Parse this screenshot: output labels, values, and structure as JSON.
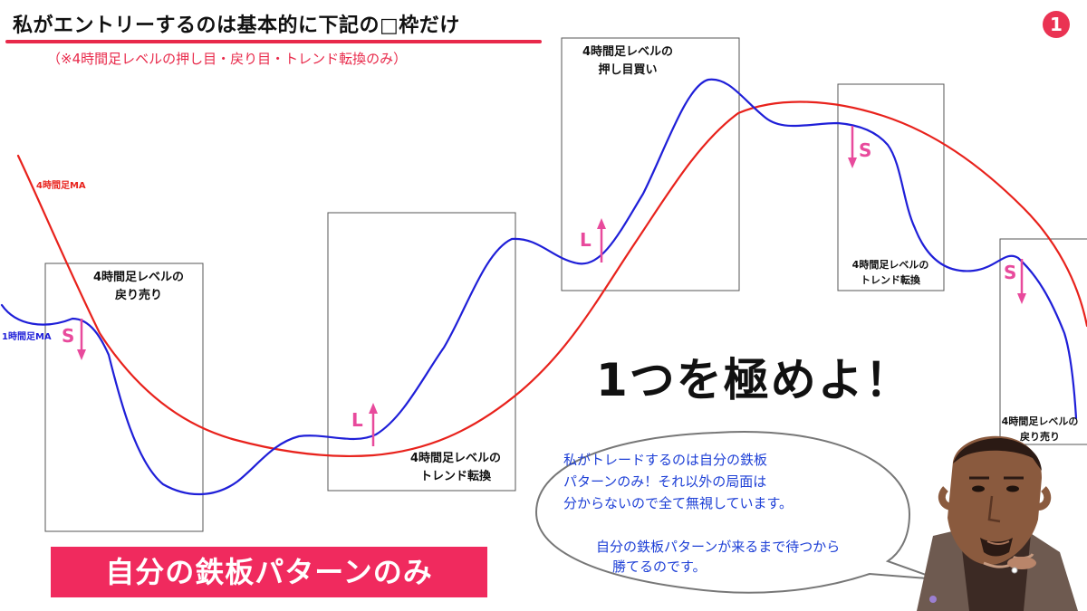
{
  "header": {
    "title": "私がエントリーするのは基本的に下記の□枠だけ",
    "subtitle": "（※4時間足レベルの押し目・戻り目・トレンド転換のみ）",
    "page_number": "1"
  },
  "zones": [
    {
      "line1": "4時間足レベルの",
      "line2": "戻り売り"
    },
    {
      "line1": "4時間足レベルの",
      "line2": "トレンド転換"
    },
    {
      "line1": "4時間足レベルの",
      "line2": "押し目買い"
    },
    {
      "line1": "4時間足レベルの",
      "line2": "トレンド転換"
    },
    {
      "line1": "4時間足レベルの",
      "line2": "戻り売り"
    }
  ],
  "ma_labels": {
    "h4": "4時間足MA",
    "h1": "1時間足MA"
  },
  "signals": {
    "sell": "S",
    "buy": "L"
  },
  "catchphrase": "1つを極めよ！",
  "banner": "自分の鉄板パターンのみ",
  "speech_bubble": {
    "line1": "私がトレードするのは自分の鉄板",
    "line2": "パターンのみ！それ以外の局面は",
    "line3": "分からないので全て無視しています。",
    "line4": "自分の鉄板パターンが来るまで待つから",
    "line5": "勝てるのです。"
  },
  "colors": {
    "ma_4h": "#e8221c",
    "ma_1h": "#1f1fd8",
    "signal_pink": "#e84a9c",
    "accent_red": "#e8294a",
    "banner_bg": "#f02a5e"
  }
}
